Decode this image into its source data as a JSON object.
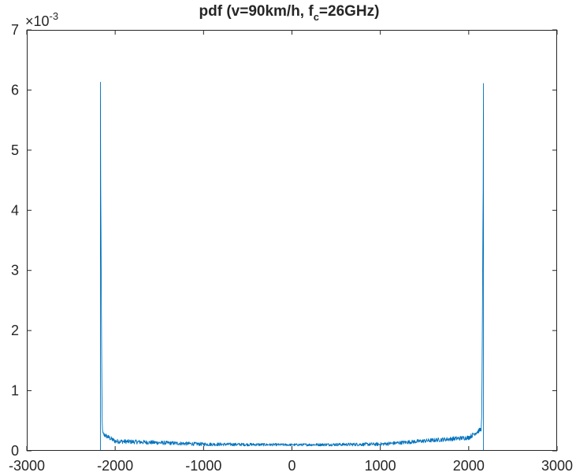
{
  "chart_data": {
    "type": "line",
    "title": {
      "before_sub": "pdf (v=90km/h, f",
      "sub": "c",
      "after_sub": "=26GHz)"
    },
    "xlabel": "",
    "ylabel": "",
    "xlim": [
      -3000,
      3000
    ],
    "ylim": [
      0,
      0.007
    ],
    "x_ticks": [
      -3000,
      -2000,
      -1000,
      0,
      1000,
      2000,
      3000
    ],
    "y_ticks": [
      0,
      0.001,
      0.002,
      0.003,
      0.004,
      0.005,
      0.006,
      0.007
    ],
    "x_tick_labels": [
      "-3000",
      "-2000",
      "-1000",
      "0",
      "1000",
      "2000",
      "3000"
    ],
    "y_tick_labels": [
      "0",
      "1",
      "2",
      "3",
      "4",
      "5",
      "6",
      "7"
    ],
    "y_exponent": {
      "base": "×10",
      "power": "-3"
    },
    "grid": false,
    "legend": "none",
    "series_color": "#0072BD",
    "series": [
      {
        "x_range": [
          -2167,
          2167
        ],
        "peak_left": {
          "x": -2167,
          "y": 0.00613
        },
        "peak_right": {
          "x": 2167,
          "y": 0.00611
        },
        "noise_amplitude": 2e-05,
        "description_points": [
          {
            "x": -2160,
            "y": 0.00085
          },
          {
            "x": -2140,
            "y": 0.00028
          },
          {
            "x": -2000,
            "y": 0.00016
          },
          {
            "x": -1000,
            "y": 0.00011
          },
          {
            "x": 0,
            "y": 0.0001
          },
          {
            "x": 1000,
            "y": 0.00011
          },
          {
            "x": 2000,
            "y": 0.00022
          },
          {
            "x": 2140,
            "y": 0.00036
          },
          {
            "x": 2160,
            "y": 0.00085
          }
        ]
      }
    ]
  }
}
